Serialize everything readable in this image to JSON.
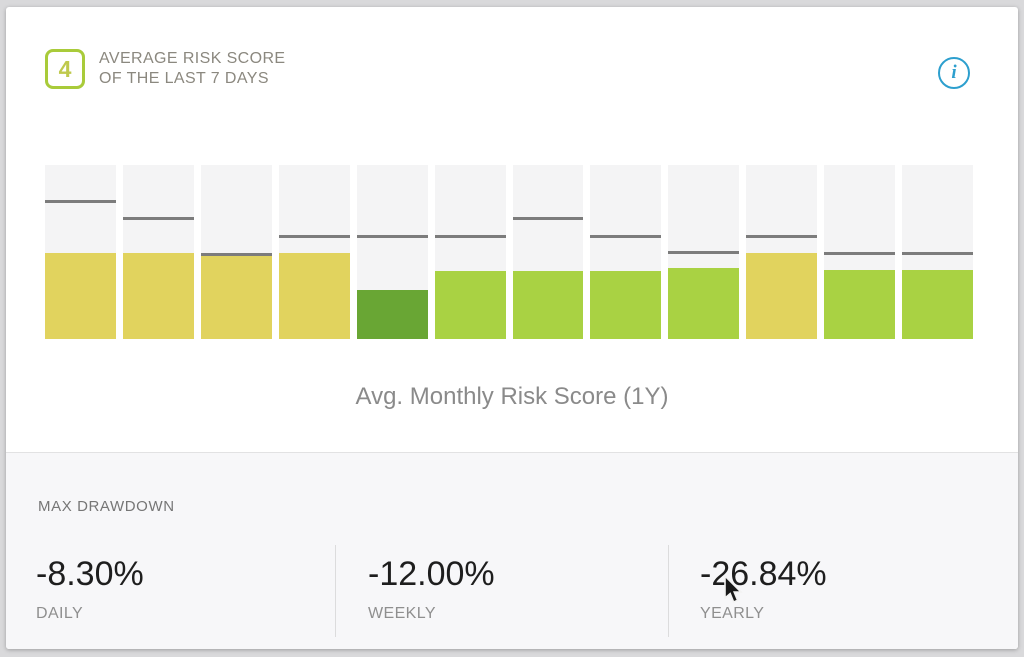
{
  "header": {
    "badge_value": "4",
    "title_line1": "AVERAGE RISK SCORE",
    "title_line2": "OF THE LAST 7 DAYS",
    "info_symbol": "i"
  },
  "chart_data": {
    "type": "bar",
    "title": "Avg. Monthly Risk Score (1Y)",
    "xlabel": "",
    "ylabel": "",
    "x_tick_labels_visible": false,
    "grid": false,
    "legend": "none",
    "description": "12 monthly columns; colored fill = avg monthly risk score (est. 0-10 scale), gray line = secondary marker level",
    "colors": {
      "column_bg": "#f4f4f5",
      "yellow": "#e1d35e",
      "green": "#a9d243",
      "dark_green": "#69a634",
      "marker": "#7c7c7c"
    },
    "est_scale": [
      0,
      10
    ],
    "bars": [
      {
        "month": 1,
        "color_key": "yellow",
        "fill_pct": 49.4,
        "marker_pct": 78.7,
        "est_score": 4.9,
        "est_marker": 7.9
      },
      {
        "month": 2,
        "color_key": "yellow",
        "fill_pct": 49.4,
        "marker_pct": 69.0,
        "est_score": 4.9,
        "est_marker": 6.9
      },
      {
        "month": 3,
        "color_key": "yellow",
        "fill_pct": 48.3,
        "marker_pct": 48.3,
        "est_score": 4.8,
        "est_marker": 4.8
      },
      {
        "month": 4,
        "color_key": "yellow",
        "fill_pct": 49.4,
        "marker_pct": 58.6,
        "est_score": 4.9,
        "est_marker": 5.9
      },
      {
        "month": 5,
        "color_key": "dark_green",
        "fill_pct": 28.2,
        "marker_pct": 58.6,
        "est_score": 2.8,
        "est_marker": 5.9
      },
      {
        "month": 6,
        "color_key": "green",
        "fill_pct": 39.1,
        "marker_pct": 58.6,
        "est_score": 3.9,
        "est_marker": 5.9
      },
      {
        "month": 7,
        "color_key": "green",
        "fill_pct": 39.1,
        "marker_pct": 69.0,
        "est_score": 3.9,
        "est_marker": 6.9
      },
      {
        "month": 8,
        "color_key": "green",
        "fill_pct": 39.1,
        "marker_pct": 58.6,
        "est_score": 3.9,
        "est_marker": 5.9
      },
      {
        "month": 9,
        "color_key": "green",
        "fill_pct": 40.8,
        "marker_pct": 49.4,
        "est_score": 4.1,
        "est_marker": 4.9
      },
      {
        "month": 10,
        "color_key": "yellow",
        "fill_pct": 49.4,
        "marker_pct": 58.6,
        "est_score": 4.9,
        "est_marker": 5.9
      },
      {
        "month": 11,
        "color_key": "green",
        "fill_pct": 39.7,
        "marker_pct": 48.9,
        "est_score": 4.0,
        "est_marker": 4.9
      },
      {
        "month": 12,
        "color_key": "green",
        "fill_pct": 39.7,
        "marker_pct": 48.9,
        "est_score": 4.0,
        "est_marker": 4.9
      }
    ]
  },
  "drawdown": {
    "label": "MAX DRAWDOWN",
    "stats": [
      {
        "value": "-8.30%",
        "period": "DAILY"
      },
      {
        "value": "-12.00%",
        "period": "WEEKLY"
      },
      {
        "value": "-26.84%",
        "period": "YEARLY"
      }
    ]
  }
}
